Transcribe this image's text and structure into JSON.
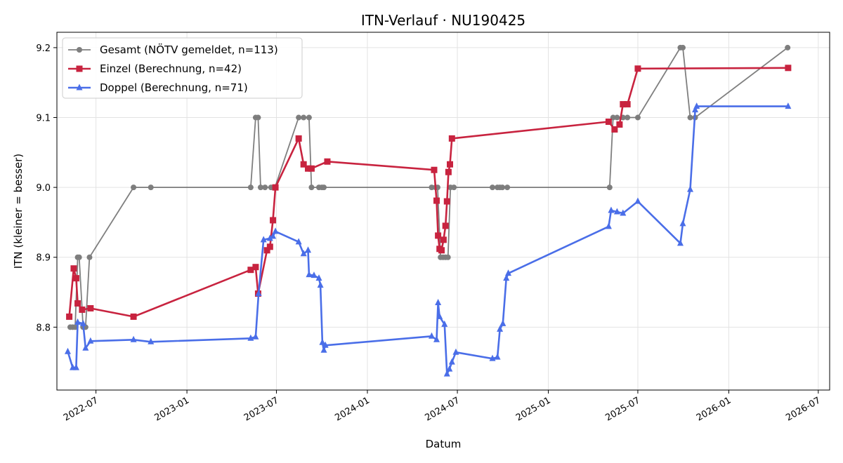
{
  "chart_data": {
    "type": "line",
    "title": "ITN-Verlauf · NU190425",
    "xlabel": "Datum",
    "ylabel": "ITN  (kleiner = besser)",
    "x_axis_type": "date",
    "xlim": [
      "2022-04-13",
      "2026-07-24"
    ],
    "ylim": [
      8.71,
      9.222
    ],
    "x_ticks": [
      {
        "date": "2022-07-01",
        "label": "2022-07"
      },
      {
        "date": "2023-01-01",
        "label": "2023-01"
      },
      {
        "date": "2023-07-01",
        "label": "2023-07"
      },
      {
        "date": "2024-01-01",
        "label": "2024-01"
      },
      {
        "date": "2024-07-01",
        "label": "2024-07"
      },
      {
        "date": "2025-01-01",
        "label": "2025-01"
      },
      {
        "date": "2025-07-01",
        "label": "2025-07"
      },
      {
        "date": "2026-01-01",
        "label": "2026-01"
      },
      {
        "date": "2026-07-01",
        "label": "2026-07"
      }
    ],
    "y_ticks": [
      {
        "value": 8.8,
        "label": "8.8"
      },
      {
        "value": 8.9,
        "label": "8.9"
      },
      {
        "value": 9.0,
        "label": "9.0"
      },
      {
        "value": 9.1,
        "label": "9.1"
      },
      {
        "value": 9.2,
        "label": "9.2"
      }
    ],
    "grid": true,
    "legend_position": "top-left",
    "series": [
      {
        "name": "Gesamt (NÖTV gemeldet, n=113)",
        "color": "#555555",
        "marker": "circle",
        "points": [
          [
            "2022-05-10",
            8.8
          ],
          [
            "2022-05-15",
            8.8
          ],
          [
            "2022-05-20",
            8.8
          ],
          [
            "2022-05-25",
            8.9
          ],
          [
            "2022-05-28",
            8.9
          ],
          [
            "2022-06-05",
            8.8
          ],
          [
            "2022-06-10",
            8.8
          ],
          [
            "2022-06-18",
            8.9
          ],
          [
            "2022-09-15",
            9.0
          ],
          [
            "2022-10-20",
            9.0
          ],
          [
            "2023-05-10",
            9.0
          ],
          [
            "2023-05-20",
            9.1
          ],
          [
            "2023-05-25",
            9.1
          ],
          [
            "2023-05-30",
            9.0
          ],
          [
            "2023-06-08",
            9.0
          ],
          [
            "2023-06-20",
            9.0
          ],
          [
            "2023-06-28",
            9.0
          ],
          [
            "2023-08-15",
            9.1
          ],
          [
            "2023-08-25",
            9.1
          ],
          [
            "2023-09-05",
            9.1
          ],
          [
            "2023-09-10",
            9.0
          ],
          [
            "2023-09-25",
            9.0
          ],
          [
            "2023-10-01",
            9.0
          ],
          [
            "2023-10-05",
            9.0
          ],
          [
            "2024-05-10",
            9.0
          ],
          [
            "2024-05-18",
            9.0
          ],
          [
            "2024-05-22",
            9.0
          ],
          [
            "2024-05-28",
            8.9
          ],
          [
            "2024-06-02",
            8.9
          ],
          [
            "2024-06-07",
            8.9
          ],
          [
            "2024-06-12",
            8.9
          ],
          [
            "2024-06-17",
            9.0
          ],
          [
            "2024-06-24",
            9.0
          ],
          [
            "2024-09-10",
            9.0
          ],
          [
            "2024-09-20",
            9.0
          ],
          [
            "2024-09-25",
            9.0
          ],
          [
            "2024-09-30",
            9.0
          ],
          [
            "2024-10-10",
            9.0
          ],
          [
            "2025-05-05",
            9.0
          ],
          [
            "2025-05-12",
            9.1
          ],
          [
            "2025-05-20",
            9.1
          ],
          [
            "2025-06-01",
            9.1
          ],
          [
            "2025-06-10",
            9.1
          ],
          [
            "2025-07-01",
            9.1
          ],
          [
            "2025-09-25",
            9.2
          ],
          [
            "2025-09-30",
            9.2
          ],
          [
            "2025-10-15",
            9.1
          ],
          [
            "2025-10-25",
            9.1
          ],
          [
            "2026-04-30",
            9.2
          ]
        ]
      },
      {
        "name": "Einzel (Berechnung, n=42)",
        "color": "#c8233f",
        "marker": "square",
        "points": [
          [
            "2022-05-08",
            8.815
          ],
          [
            "2022-05-17",
            8.884
          ],
          [
            "2022-05-22",
            8.87
          ],
          [
            "2022-05-25",
            8.834
          ],
          [
            "2022-06-03",
            8.825
          ],
          [
            "2022-06-20",
            8.827
          ],
          [
            "2022-09-15",
            8.815
          ],
          [
            "2023-05-10",
            8.882
          ],
          [
            "2023-05-20",
            8.886
          ],
          [
            "2023-05-25",
            8.848
          ],
          [
            "2023-06-12",
            8.91
          ],
          [
            "2023-06-18",
            8.915
          ],
          [
            "2023-06-24",
            8.953
          ],
          [
            "2023-06-29",
            9.0
          ],
          [
            "2023-08-15",
            9.07
          ],
          [
            "2023-08-25",
            9.033
          ],
          [
            "2023-09-03",
            9.027
          ],
          [
            "2023-09-10",
            9.027
          ],
          [
            "2023-10-12",
            9.037
          ],
          [
            "2024-05-15",
            9.025
          ],
          [
            "2024-05-20",
            8.981
          ],
          [
            "2024-05-23",
            8.931
          ],
          [
            "2024-05-26",
            8.912
          ],
          [
            "2024-05-30",
            8.91
          ],
          [
            "2024-06-03",
            8.925
          ],
          [
            "2024-06-07",
            8.945
          ],
          [
            "2024-06-10",
            8.98
          ],
          [
            "2024-06-13",
            9.022
          ],
          [
            "2024-06-16",
            9.033
          ],
          [
            "2024-06-20",
            9.07
          ],
          [
            "2025-05-03",
            9.094
          ],
          [
            "2025-05-15",
            9.083
          ],
          [
            "2025-05-25",
            9.09
          ],
          [
            "2025-06-01",
            9.119
          ],
          [
            "2025-06-10",
            9.119
          ],
          [
            "2025-07-01",
            9.17
          ],
          [
            "2026-05-01",
            9.171
          ]
        ]
      },
      {
        "name": "Doppel (Berechnung, n=71)",
        "color": "#4a6ee8",
        "marker": "triangle",
        "points": [
          [
            "2022-05-05",
            8.765
          ],
          [
            "2022-05-15",
            8.742
          ],
          [
            "2022-05-22",
            8.742
          ],
          [
            "2022-05-25",
            8.807
          ],
          [
            "2022-06-05",
            8.805
          ],
          [
            "2022-06-10",
            8.77
          ],
          [
            "2022-06-20",
            8.78
          ],
          [
            "2022-09-15",
            8.782
          ],
          [
            "2022-10-20",
            8.779
          ],
          [
            "2023-05-10",
            8.784
          ],
          [
            "2023-05-20",
            8.786
          ],
          [
            "2023-05-26",
            8.848
          ],
          [
            "2023-06-05",
            8.925
          ],
          [
            "2023-06-18",
            8.927
          ],
          [
            "2023-06-24",
            8.93
          ],
          [
            "2023-06-29",
            8.937
          ],
          [
            "2023-08-15",
            8.922
          ],
          [
            "2023-08-25",
            8.905
          ],
          [
            "2023-09-03",
            8.91
          ],
          [
            "2023-09-05",
            8.875
          ],
          [
            "2023-09-15",
            8.874
          ],
          [
            "2023-09-25",
            8.87
          ],
          [
            "2023-09-28",
            8.86
          ],
          [
            "2023-10-02",
            8.778
          ],
          [
            "2023-10-05",
            8.767
          ],
          [
            "2023-10-08",
            8.774
          ],
          [
            "2024-05-10",
            8.787
          ],
          [
            "2024-05-20",
            8.782
          ],
          [
            "2024-05-23",
            8.835
          ],
          [
            "2024-05-26",
            8.815
          ],
          [
            "2024-06-05",
            8.804
          ],
          [
            "2024-06-10",
            8.733
          ],
          [
            "2024-06-15",
            8.74
          ],
          [
            "2024-06-20",
            8.75
          ],
          [
            "2024-06-28",
            8.764
          ],
          [
            "2024-09-10",
            8.755
          ],
          [
            "2024-09-20",
            8.757
          ],
          [
            "2024-09-25",
            8.797
          ],
          [
            "2024-10-01",
            8.805
          ],
          [
            "2024-10-08",
            8.87
          ],
          [
            "2024-10-12",
            8.877
          ],
          [
            "2025-05-03",
            8.944
          ],
          [
            "2025-05-08",
            8.967
          ],
          [
            "2025-05-20",
            8.965
          ],
          [
            "2025-06-01",
            8.963
          ],
          [
            "2025-07-01",
            8.98
          ],
          [
            "2025-09-25",
            8.92
          ],
          [
            "2025-09-30",
            8.948
          ],
          [
            "2025-10-15",
            8.997
          ],
          [
            "2025-10-25",
            9.111
          ],
          [
            "2025-10-28",
            9.116
          ],
          [
            "2026-05-01",
            9.116
          ]
        ]
      }
    ]
  }
}
